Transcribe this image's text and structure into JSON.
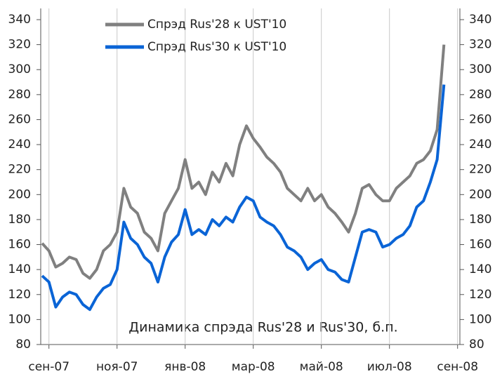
{
  "chart_data": {
    "type": "line",
    "annotation": "Динамика спрэда Rus'28 и Rus'30, б.п.",
    "categories": [
      null,
      "сен-07",
      null,
      null,
      null,
      null,
      null,
      null,
      null,
      null,
      null,
      "ноя-07",
      null,
      null,
      null,
      null,
      null,
      null,
      null,
      null,
      null,
      "янв-08",
      null,
      null,
      null,
      null,
      null,
      null,
      null,
      null,
      null,
      "мар-08",
      null,
      null,
      null,
      null,
      null,
      null,
      null,
      null,
      null,
      "май-08",
      null,
      null,
      null,
      null,
      null,
      null,
      null,
      null,
      null,
      "июл-08",
      null,
      null,
      null,
      null,
      null,
      null,
      null,
      null,
      null,
      "сен-08"
    ],
    "series": [
      {
        "name": "Спрэд Rus'28 к UST'10",
        "color": "#808080",
        "values": [
          161,
          155,
          142,
          145,
          150,
          148,
          137,
          133,
          140,
          155,
          160,
          170,
          205,
          190,
          185,
          170,
          165,
          155,
          185,
          195,
          205,
          228,
          205,
          210,
          200,
          218,
          210,
          225,
          215,
          240,
          255,
          245,
          238,
          230,
          225,
          218,
          205,
          200,
          195,
          205,
          195,
          200,
          190,
          185,
          178,
          170,
          185,
          205,
          208,
          200,
          195,
          195,
          205,
          210,
          215,
          225,
          228,
          235,
          252,
          320,
          null,
          null
        ]
      },
      {
        "name": "Спрэд Rus'30 к UST'10",
        "color": "#0a64d6",
        "values": [
          135,
          130,
          110,
          118,
          122,
          120,
          112,
          108,
          118,
          125,
          128,
          140,
          178,
          165,
          160,
          150,
          145,
          130,
          150,
          162,
          168,
          188,
          168,
          172,
          168,
          180,
          175,
          182,
          178,
          190,
          198,
          195,
          182,
          178,
          175,
          168,
          158,
          155,
          150,
          140,
          145,
          148,
          140,
          138,
          132,
          130,
          150,
          170,
          172,
          170,
          158,
          160,
          165,
          168,
          175,
          190,
          195,
          210,
          228,
          288,
          null,
          null
        ]
      }
    ],
    "ylim": [
      80,
      340
    ],
    "yticks": [
      80,
      100,
      120,
      140,
      160,
      180,
      200,
      220,
      240,
      260,
      280,
      300,
      320,
      340
    ],
    "y2lim": [
      80,
      340
    ],
    "y2ticks": [
      80,
      100,
      120,
      140,
      160,
      180,
      200,
      220,
      240,
      260,
      280,
      300,
      320,
      340
    ],
    "grid_x": true
  }
}
